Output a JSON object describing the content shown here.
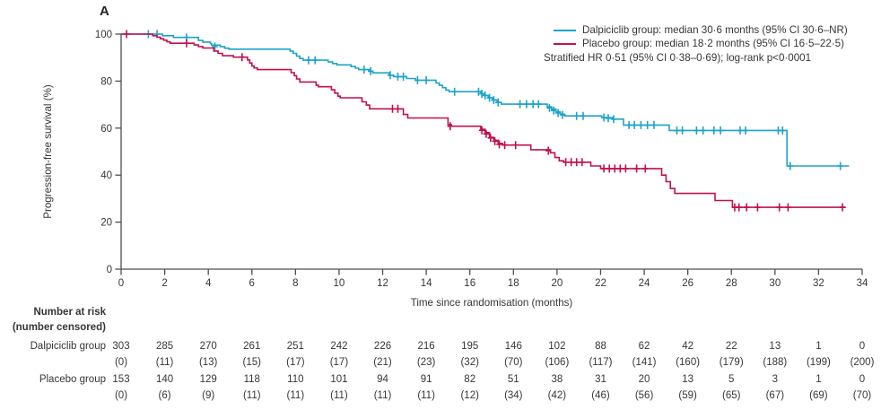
{
  "panel_label": "A",
  "colors": {
    "dalpiciclib": "#1fa3c9",
    "placebo": "#c01050",
    "axis": "#4d4d4f",
    "text": "#363636"
  },
  "legend": {
    "entries": [
      {
        "series": "dalpiciclib",
        "label": "Dalpiciclib group: median 30·6 months (95% CI 30·6–NR)"
      },
      {
        "series": "placebo",
        "label": "Placebo group: median 18·2 months (95% CI 16·5–22·5)"
      }
    ],
    "note": "Stratified HR 0·51 (95% CI 0·38–0·69); log-rank p<0·0001"
  },
  "chart_data": {
    "type": "line",
    "subtype": "kaplan-meier-step",
    "title": "",
    "xlabel": "Time since randomisation (months)",
    "ylabel": "Progression-free survival (%)",
    "xlim": [
      0,
      34
    ],
    "ylim": [
      0,
      100
    ],
    "xticks": [
      0,
      2,
      4,
      6,
      8,
      10,
      12,
      14,
      16,
      18,
      20,
      22,
      24,
      26,
      28,
      30,
      32,
      34
    ],
    "yticks": [
      0,
      20,
      40,
      60,
      80,
      100
    ],
    "grid": false,
    "legend_position": "top-right",
    "series": [
      {
        "name": "Dalpiciclib group",
        "color_key": "dalpiciclib",
        "median_months": "30·6",
        "ci": "30·6–NR",
        "steps": [
          [
            0,
            100
          ],
          [
            1.85,
            100
          ],
          [
            1.9,
            99.3
          ],
          [
            2.35,
            99.3
          ],
          [
            2.4,
            98.6
          ],
          [
            3.45,
            98.6
          ],
          [
            3.55,
            97.3
          ],
          [
            3.75,
            96.6
          ],
          [
            4.1,
            96.0
          ],
          [
            4.15,
            95.3
          ],
          [
            4.55,
            94.7
          ],
          [
            4.75,
            94.0
          ],
          [
            4.95,
            93.6
          ],
          [
            7.6,
            93.6
          ],
          [
            7.75,
            92.8
          ],
          [
            7.9,
            91.8
          ],
          [
            8.05,
            90.6
          ],
          [
            8.2,
            89.6
          ],
          [
            8.35,
            88.9
          ],
          [
            9.3,
            88.9
          ],
          [
            9.5,
            88.2
          ],
          [
            9.7,
            87.5
          ],
          [
            9.9,
            86.9
          ],
          [
            10.4,
            86.9
          ],
          [
            10.55,
            86.2
          ],
          [
            10.75,
            85.5
          ],
          [
            10.9,
            84.9
          ],
          [
            11.3,
            84.9
          ],
          [
            11.4,
            84.2
          ],
          [
            11.55,
            83.5
          ],
          [
            12.15,
            83.5
          ],
          [
            12.3,
            82.5
          ],
          [
            12.5,
            81.9
          ],
          [
            13.0,
            81.9
          ],
          [
            13.1,
            81.1
          ],
          [
            13.5,
            80.4
          ],
          [
            14.35,
            80.4
          ],
          [
            14.45,
            79.2
          ],
          [
            14.6,
            78.2
          ],
          [
            14.75,
            77.2
          ],
          [
            14.9,
            76.2
          ],
          [
            15.05,
            75.5
          ],
          [
            16.35,
            75.5
          ],
          [
            16.5,
            74.6
          ],
          [
            16.65,
            73.9
          ],
          [
            16.85,
            72.9
          ],
          [
            17.05,
            71.9
          ],
          [
            17.25,
            70.9
          ],
          [
            17.45,
            70.2
          ],
          [
            19.35,
            70.2
          ],
          [
            19.55,
            69.1
          ],
          [
            19.75,
            68.1
          ],
          [
            19.95,
            66.9
          ],
          [
            20.15,
            65.9
          ],
          [
            20.35,
            65.2
          ],
          [
            21.95,
            65.2
          ],
          [
            22.05,
            64.5
          ],
          [
            22.55,
            63.8
          ],
          [
            22.95,
            63.8
          ],
          [
            23.05,
            61.3
          ],
          [
            25.05,
            61.3
          ],
          [
            25.15,
            59.0
          ],
          [
            30.45,
            59.0
          ],
          [
            30.55,
            43.9
          ],
          [
            33.4,
            43.9
          ]
        ],
        "censors": [
          [
            1.25,
            100
          ],
          [
            1.65,
            100
          ],
          [
            3.0,
            98.6
          ],
          [
            4.3,
            94.7
          ],
          [
            8.6,
            88.9
          ],
          [
            8.9,
            88.9
          ],
          [
            11.15,
            84.9
          ],
          [
            11.45,
            84.2
          ],
          [
            12.35,
            82.5
          ],
          [
            12.7,
            81.9
          ],
          [
            12.95,
            81.9
          ],
          [
            13.6,
            80.4
          ],
          [
            14.0,
            80.4
          ],
          [
            15.3,
            75.5
          ],
          [
            16.4,
            75.5
          ],
          [
            16.55,
            74.6
          ],
          [
            16.7,
            73.9
          ],
          [
            16.9,
            72.9
          ],
          [
            17.1,
            71.9
          ],
          [
            17.3,
            70.9
          ],
          [
            18.3,
            70.2
          ],
          [
            18.6,
            70.2
          ],
          [
            18.9,
            70.2
          ],
          [
            19.15,
            70.2
          ],
          [
            19.65,
            68.6
          ],
          [
            19.85,
            67.5
          ],
          [
            20.05,
            66.4
          ],
          [
            20.25,
            65.6
          ],
          [
            20.9,
            65.2
          ],
          [
            21.2,
            65.2
          ],
          [
            22.15,
            64.5
          ],
          [
            22.35,
            64.2
          ],
          [
            22.6,
            63.8
          ],
          [
            23.3,
            61.3
          ],
          [
            23.55,
            61.3
          ],
          [
            23.85,
            61.3
          ],
          [
            24.15,
            61.3
          ],
          [
            24.45,
            61.3
          ],
          [
            25.5,
            59.0
          ],
          [
            25.75,
            59.0
          ],
          [
            26.4,
            59.0
          ],
          [
            26.7,
            59.0
          ],
          [
            27.2,
            59.0
          ],
          [
            27.5,
            59.0
          ],
          [
            28.4,
            59.0
          ],
          [
            28.65,
            59.0
          ],
          [
            30.15,
            59.0
          ],
          [
            30.35,
            59.0
          ],
          [
            30.7,
            43.9
          ],
          [
            33.0,
            43.9
          ]
        ]
      },
      {
        "name": "Placebo group",
        "color_key": "placebo",
        "median_months": "18·2",
        "ci": "16·5–22·5",
        "steps": [
          [
            0,
            100
          ],
          [
            1.35,
            100
          ],
          [
            1.45,
            99.3
          ],
          [
            1.65,
            98.7
          ],
          [
            1.8,
            98.0
          ],
          [
            1.95,
            97.4
          ],
          [
            2.1,
            96.7
          ],
          [
            2.25,
            96.1
          ],
          [
            3.25,
            96.1
          ],
          [
            3.35,
            95.4
          ],
          [
            3.55,
            94.7
          ],
          [
            3.75,
            94.1
          ],
          [
            4.15,
            94.1
          ],
          [
            4.25,
            92.8
          ],
          [
            4.45,
            91.8
          ],
          [
            4.65,
            90.8
          ],
          [
            5.05,
            90.8
          ],
          [
            5.15,
            90.2
          ],
          [
            5.7,
            90.2
          ],
          [
            5.8,
            89.0
          ],
          [
            5.9,
            87.7
          ],
          [
            6.0,
            86.4
          ],
          [
            6.1,
            85.6
          ],
          [
            6.25,
            84.9
          ],
          [
            7.7,
            84.9
          ],
          [
            7.8,
            83.6
          ],
          [
            7.95,
            82.3
          ],
          [
            8.05,
            80.9
          ],
          [
            8.2,
            79.6
          ],
          [
            8.8,
            79.6
          ],
          [
            8.95,
            78.3
          ],
          [
            9.05,
            77.6
          ],
          [
            9.5,
            77.6
          ],
          [
            9.65,
            76.3
          ],
          [
            9.8,
            74.9
          ],
          [
            9.95,
            73.6
          ],
          [
            10.05,
            72.9
          ],
          [
            10.9,
            72.9
          ],
          [
            11.05,
            71.2
          ],
          [
            11.25,
            69.8
          ],
          [
            11.4,
            68.2
          ],
          [
            12.85,
            68.2
          ],
          [
            12.95,
            65.8
          ],
          [
            13.15,
            64.3
          ],
          [
            14.85,
            64.3
          ],
          [
            15.0,
            61.5
          ],
          [
            15.15,
            60.8
          ],
          [
            16.4,
            60.8
          ],
          [
            16.5,
            59.5
          ],
          [
            16.7,
            58.1
          ],
          [
            16.9,
            56.1
          ],
          [
            17.1,
            54.8
          ],
          [
            17.3,
            53.5
          ],
          [
            17.5,
            52.8
          ],
          [
            18.65,
            52.8
          ],
          [
            18.8,
            50.8
          ],
          [
            19.55,
            50.8
          ],
          [
            19.7,
            49.5
          ],
          [
            19.9,
            47.5
          ],
          [
            20.1,
            46.1
          ],
          [
            20.3,
            45.5
          ],
          [
            21.4,
            45.5
          ],
          [
            21.55,
            43.9
          ],
          [
            21.95,
            43.9
          ],
          [
            22.0,
            42.8
          ],
          [
            24.65,
            42.8
          ],
          [
            24.8,
            40.0
          ],
          [
            25.0,
            37.2
          ],
          [
            25.2,
            34.3
          ],
          [
            25.4,
            32.2
          ],
          [
            27.1,
            32.2
          ],
          [
            27.25,
            29.2
          ],
          [
            27.9,
            29.2
          ],
          [
            28.05,
            26.3
          ],
          [
            33.25,
            26.3
          ]
        ],
        "censors": [
          [
            0.25,
            100
          ],
          [
            3.0,
            96.1
          ],
          [
            5.55,
            90.2
          ],
          [
            12.45,
            68.2
          ],
          [
            12.7,
            68.2
          ],
          [
            15.1,
            60.8
          ],
          [
            16.55,
            59.1
          ],
          [
            16.75,
            57.5
          ],
          [
            16.95,
            55.8
          ],
          [
            17.15,
            54.4
          ],
          [
            17.35,
            53.1
          ],
          [
            17.6,
            52.8
          ],
          [
            18.1,
            52.8
          ],
          [
            19.6,
            50.4
          ],
          [
            20.4,
            45.5
          ],
          [
            20.65,
            45.5
          ],
          [
            20.9,
            45.5
          ],
          [
            21.15,
            45.5
          ],
          [
            22.15,
            42.8
          ],
          [
            22.4,
            42.8
          ],
          [
            22.65,
            42.8
          ],
          [
            22.9,
            42.8
          ],
          [
            23.15,
            42.8
          ],
          [
            23.65,
            42.8
          ],
          [
            24.05,
            42.8
          ],
          [
            28.15,
            26.3
          ],
          [
            28.35,
            26.3
          ],
          [
            28.7,
            26.3
          ],
          [
            29.2,
            26.3
          ],
          [
            30.2,
            26.3
          ],
          [
            30.6,
            26.3
          ],
          [
            33.1,
            26.3
          ]
        ]
      }
    ]
  },
  "risk_table": {
    "header": "Number at risk",
    "subheader": "(number censored)",
    "months": [
      0,
      2,
      4,
      6,
      8,
      10,
      12,
      14,
      16,
      18,
      20,
      22,
      24,
      26,
      28,
      30,
      32,
      34
    ],
    "rows": [
      {
        "label": "Dalpiciclib group",
        "at_risk": [
          303,
          285,
          270,
          261,
          251,
          242,
          226,
          216,
          195,
          146,
          102,
          88,
          62,
          42,
          22,
          13,
          1,
          0
        ],
        "censored": [
          0,
          11,
          13,
          15,
          17,
          17,
          21,
          23,
          32,
          70,
          106,
          117,
          141,
          160,
          179,
          188,
          199,
          200
        ]
      },
      {
        "label": "Placebo group",
        "at_risk": [
          153,
          140,
          129,
          118,
          110,
          101,
          94,
          91,
          82,
          51,
          38,
          31,
          20,
          13,
          5,
          3,
          1,
          0
        ],
        "censored": [
          0,
          6,
          9,
          11,
          11,
          11,
          11,
          11,
          12,
          34,
          42,
          46,
          56,
          59,
          65,
          67,
          69,
          70
        ]
      }
    ]
  }
}
